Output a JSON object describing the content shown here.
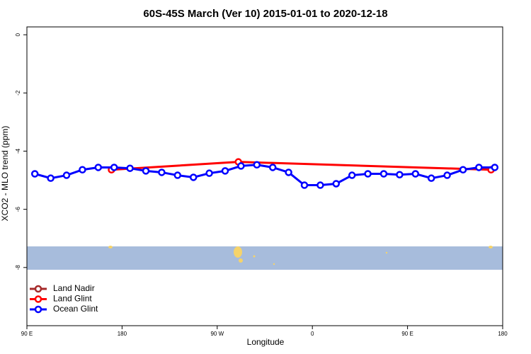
{
  "chart_data": {
    "type": "line",
    "title": "60S-45S March (Ver 10)   2015-01-01 to 2020-12-18",
    "x_label": "Longitude",
    "y_label": "XCO2 - MLO trend (ppm)",
    "xlim": [
      90,
      540
    ],
    "xticks": [
      {
        "value": 90,
        "label": "90 E"
      },
      {
        "value": 180,
        "label": "180"
      },
      {
        "value": 270,
        "label": "90 W"
      },
      {
        "value": 360,
        "label": "0"
      },
      {
        "value": 450,
        "label": "90 E"
      },
      {
        "value": 540,
        "label": "180"
      }
    ],
    "ylim": [
      -10,
      0.27
    ],
    "yticks": [
      -8,
      -6,
      -4,
      -2,
      0
    ],
    "legend": "bottom-left",
    "series": [
      {
        "name": "Land Nadir",
        "color": "#a52a2a",
        "x": [],
        "values": []
      },
      {
        "name": "Land Glint",
        "color": "#ff0000",
        "x": [
          170,
          290,
          529
        ],
        "values": [
          -4.64,
          -4.37,
          -4.64
        ]
      },
      {
        "name": "Ocean Glint",
        "color": "#0000ff",
        "x": [
          97.5,
          112.5,
          127.5,
          142.5,
          157.5,
          172.5,
          187.5,
          202.5,
          217.5,
          232.5,
          247.5,
          262.5,
          277.5,
          292.5,
          307.5,
          322.5,
          337.5,
          352.5,
          367.5,
          382.5,
          397.5,
          412.5,
          427.5,
          442.5,
          457.5,
          472.5,
          487.5,
          502.5,
          517.5,
          532.5
        ],
        "values": [
          -4.78,
          -4.93,
          -4.83,
          -4.64,
          -4.56,
          -4.56,
          -4.59,
          -4.68,
          -4.73,
          -4.83,
          -4.9,
          -4.76,
          -4.68,
          -4.51,
          -4.47,
          -4.56,
          -4.73,
          -5.17,
          -5.17,
          -5.12,
          -4.83,
          -4.78,
          -4.78,
          -4.81,
          -4.78,
          -4.93,
          -4.83,
          -4.64,
          -4.56,
          -4.56
        ]
      }
    ]
  }
}
